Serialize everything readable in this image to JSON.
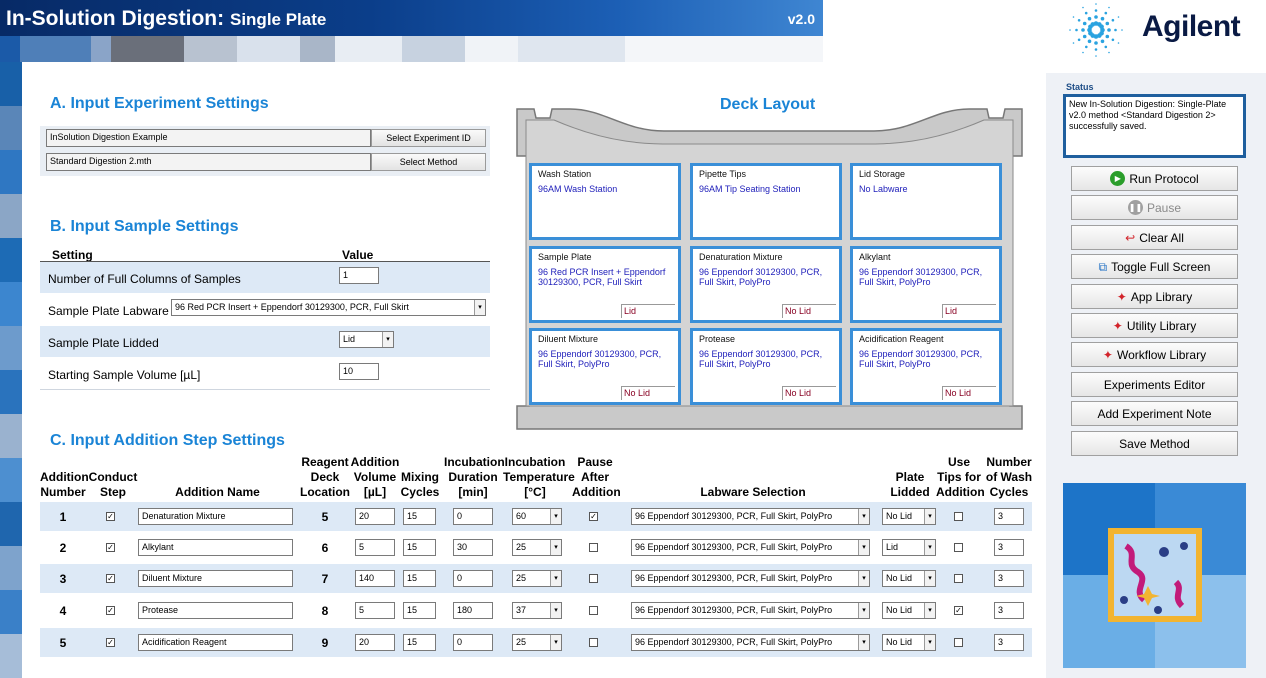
{
  "app": {
    "title_bold": "In-Solution Digestion:",
    "title_sub": "Single Plate",
    "version": "v2.0",
    "logo_text": "Agilent"
  },
  "colors": {
    "accent": "#1a84d6",
    "title_bg": "#0b3e8a",
    "cell_border": "#3a8fd8",
    "band": "#dde9f6"
  },
  "sectionA": {
    "heading": "A. Input Experiment Settings",
    "experiment_value": "InSolution Digestion Example",
    "experiment_button": "Select Experiment ID",
    "method_value": "Standard Digestion 2.mth",
    "method_button": "Select Method"
  },
  "sectionB": {
    "heading": "B. Input Sample Settings",
    "col_setting": "Setting",
    "col_value": "Value",
    "rows": [
      {
        "label": "Number of Full Columns of Samples",
        "value": "1"
      },
      {
        "label": "Sample Plate Labware",
        "value": "96 Red PCR Insert + Eppendorf 30129300, PCR, Full Skirt"
      },
      {
        "label": "Sample Plate Lidded",
        "value": "Lid"
      },
      {
        "label": "Starting Sample Volume [µL]",
        "value": "10"
      }
    ]
  },
  "deck": {
    "heading": "Deck Layout",
    "cells": [
      {
        "title": "Wash Station",
        "content": "96AM Wash Station",
        "lid": ""
      },
      {
        "title": "Pipette Tips",
        "content": "96AM Tip Seating Station",
        "lid": ""
      },
      {
        "title": "Lid Storage",
        "content": "No Labware",
        "lid": ""
      },
      {
        "title": "Sample Plate",
        "content": "96 Red PCR Insert + Eppendorf 30129300, PCR, Full Skirt",
        "lid": "Lid"
      },
      {
        "title": "Denaturation Mixture",
        "content": "96 Eppendorf 30129300, PCR, Full Skirt, PolyPro",
        "lid": "No Lid"
      },
      {
        "title": "Alkylant",
        "content": "96 Eppendorf 30129300, PCR, Full Skirt, PolyPro",
        "lid": "Lid"
      },
      {
        "title": "Diluent Mixture",
        "content": "96 Eppendorf 30129300, PCR, Full Skirt, PolyPro",
        "lid": "No Lid"
      },
      {
        "title": "Protease",
        "content": "96 Eppendorf 30129300, PCR, Full Skirt, PolyPro",
        "lid": "No Lid"
      },
      {
        "title": "Acidification Reagent",
        "content": "96 Eppendorf 30129300, PCR, Full Skirt, PolyPro",
        "lid": "No Lid"
      }
    ]
  },
  "sectionC": {
    "heading": "C. Input Addition Step Settings",
    "headers": {
      "add_num": [
        "Addition",
        "Number"
      ],
      "conduct": [
        "Conduct",
        "Step"
      ],
      "name": [
        "Addition Name"
      ],
      "location": [
        "Reagent",
        "Deck",
        "Location"
      ],
      "volume": [
        "Addition",
        "Volume",
        "[µL]"
      ],
      "mixing": [
        "Mixing",
        "Cycles"
      ],
      "duration": [
        "Incubation",
        "Duration",
        "[min]"
      ],
      "temp": [
        "Incubation",
        "Temperature",
        "[°C]"
      ],
      "pause": [
        "Pause",
        "After",
        "Addition"
      ],
      "labware": [
        "Labware Selection"
      ],
      "lidded": [
        "Plate",
        "Lidded"
      ],
      "tips": [
        "Use",
        "Tips for",
        "Addition"
      ],
      "wash": [
        "Number",
        "of Wash",
        "Cycles"
      ]
    },
    "rows": [
      {
        "num": "1",
        "conduct": true,
        "name": "Denaturation Mixture",
        "location": "5",
        "volume": "20",
        "mixing": "15",
        "duration": "0",
        "temp": "60",
        "pause": true,
        "labware": "96 Eppendorf 30129300, PCR, Full Skirt, PolyPro",
        "lidded": "No Lid",
        "tips": false,
        "wash": "3"
      },
      {
        "num": "2",
        "conduct": true,
        "name": "Alkylant",
        "location": "6",
        "volume": "5",
        "mixing": "15",
        "duration": "30",
        "temp": "25",
        "pause": false,
        "labware": "96 Eppendorf 30129300, PCR, Full Skirt, PolyPro",
        "lidded": "Lid",
        "tips": false,
        "wash": "3"
      },
      {
        "num": "3",
        "conduct": true,
        "name": "Diluent Mixture",
        "location": "7",
        "volume": "140",
        "mixing": "15",
        "duration": "0",
        "temp": "25",
        "pause": false,
        "labware": "96 Eppendorf 30129300, PCR, Full Skirt, PolyPro",
        "lidded": "No Lid",
        "tips": false,
        "wash": "3"
      },
      {
        "num": "4",
        "conduct": true,
        "name": "Protease",
        "location": "8",
        "volume": "5",
        "mixing": "15",
        "duration": "180",
        "temp": "37",
        "pause": false,
        "labware": "96 Eppendorf 30129300, PCR, Full Skirt, PolyPro",
        "lidded": "No Lid",
        "tips": true,
        "wash": "3"
      },
      {
        "num": "5",
        "conduct": true,
        "name": "Acidification Reagent",
        "location": "9",
        "volume": "20",
        "mixing": "15",
        "duration": "0",
        "temp": "25",
        "pause": false,
        "labware": "96 Eppendorf 30129300, PCR, Full Skirt, PolyPro",
        "lidded": "No Lid",
        "tips": false,
        "wash": "3"
      }
    ]
  },
  "status": {
    "label": "Status",
    "text": "New In-Solution Digestion: Single-Plate v2.0 method <Standard Digestion 2> successfully saved."
  },
  "buttons": [
    {
      "label": "Run Protocol",
      "icon": "play-icon",
      "enabled": true
    },
    {
      "label": "Pause",
      "icon": "pause-icon",
      "enabled": false
    },
    {
      "label": "Clear All",
      "icon": "undo-arrow-icon",
      "enabled": true
    },
    {
      "label": "Toggle Full Screen",
      "icon": "fullscreen-icon",
      "enabled": true
    },
    {
      "label": "App Library",
      "icon": "red-spark-icon",
      "enabled": true
    },
    {
      "label": "Utility Library",
      "icon": "red-spark-icon",
      "enabled": true
    },
    {
      "label": "Workflow Library",
      "icon": "red-spark-icon",
      "enabled": true
    },
    {
      "label": "Experiments Editor",
      "icon": "",
      "enabled": true
    },
    {
      "label": "Add Experiment Note",
      "icon": "",
      "enabled": true
    },
    {
      "label": "Save Method",
      "icon": "",
      "enabled": true
    }
  ]
}
